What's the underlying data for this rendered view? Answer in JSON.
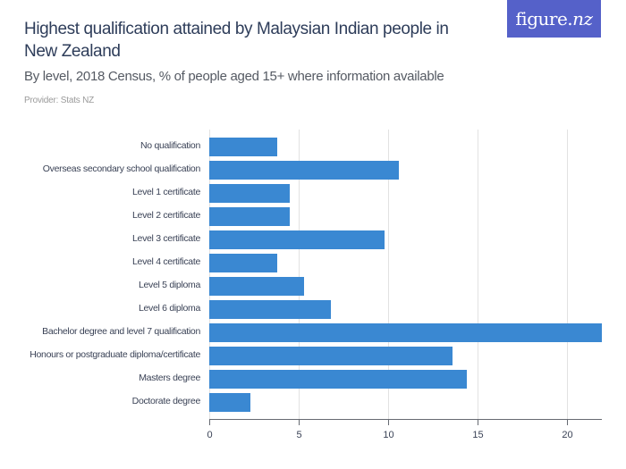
{
  "header": {
    "title": "Highest qualification attained by Malaysian Indian people in New Zealand",
    "subtitle": "By level, 2018 Census, % of people aged 15+ where information available",
    "provider": "Provider: Stats NZ",
    "logo": {
      "main": "figure.",
      "accent": "nz",
      "bg_color": "#5561c9"
    }
  },
  "chart_data": {
    "type": "bar",
    "orientation": "horizontal",
    "title": "Highest qualification attained by Malaysian Indian people in New Zealand",
    "subtitle": "By level, 2018 Census, % of people aged 15+ where information available",
    "xlabel": "",
    "ylabel": "",
    "categories": [
      "No qualification",
      "Overseas secondary school qualification",
      "Level 1 certificate",
      "Level 2 certificate",
      "Level 3 certificate",
      "Level 4 certificate",
      "Level 5 diploma",
      "Level 6 diploma",
      "Bachelor degree and level 7 qualification",
      "Honours or postgraduate diploma/certificate",
      "Masters degree",
      "Doctorate degree"
    ],
    "values": [
      3.8,
      10.6,
      4.5,
      4.5,
      9.8,
      3.8,
      5.3,
      6.8,
      22.0,
      13.6,
      14.4,
      2.3
    ],
    "xlim": [
      0,
      22
    ],
    "x_ticks": [
      "0",
      "5",
      "10",
      "15",
      "20"
    ],
    "grid": true,
    "legend": null,
    "bar_color": "#3a88d2"
  }
}
